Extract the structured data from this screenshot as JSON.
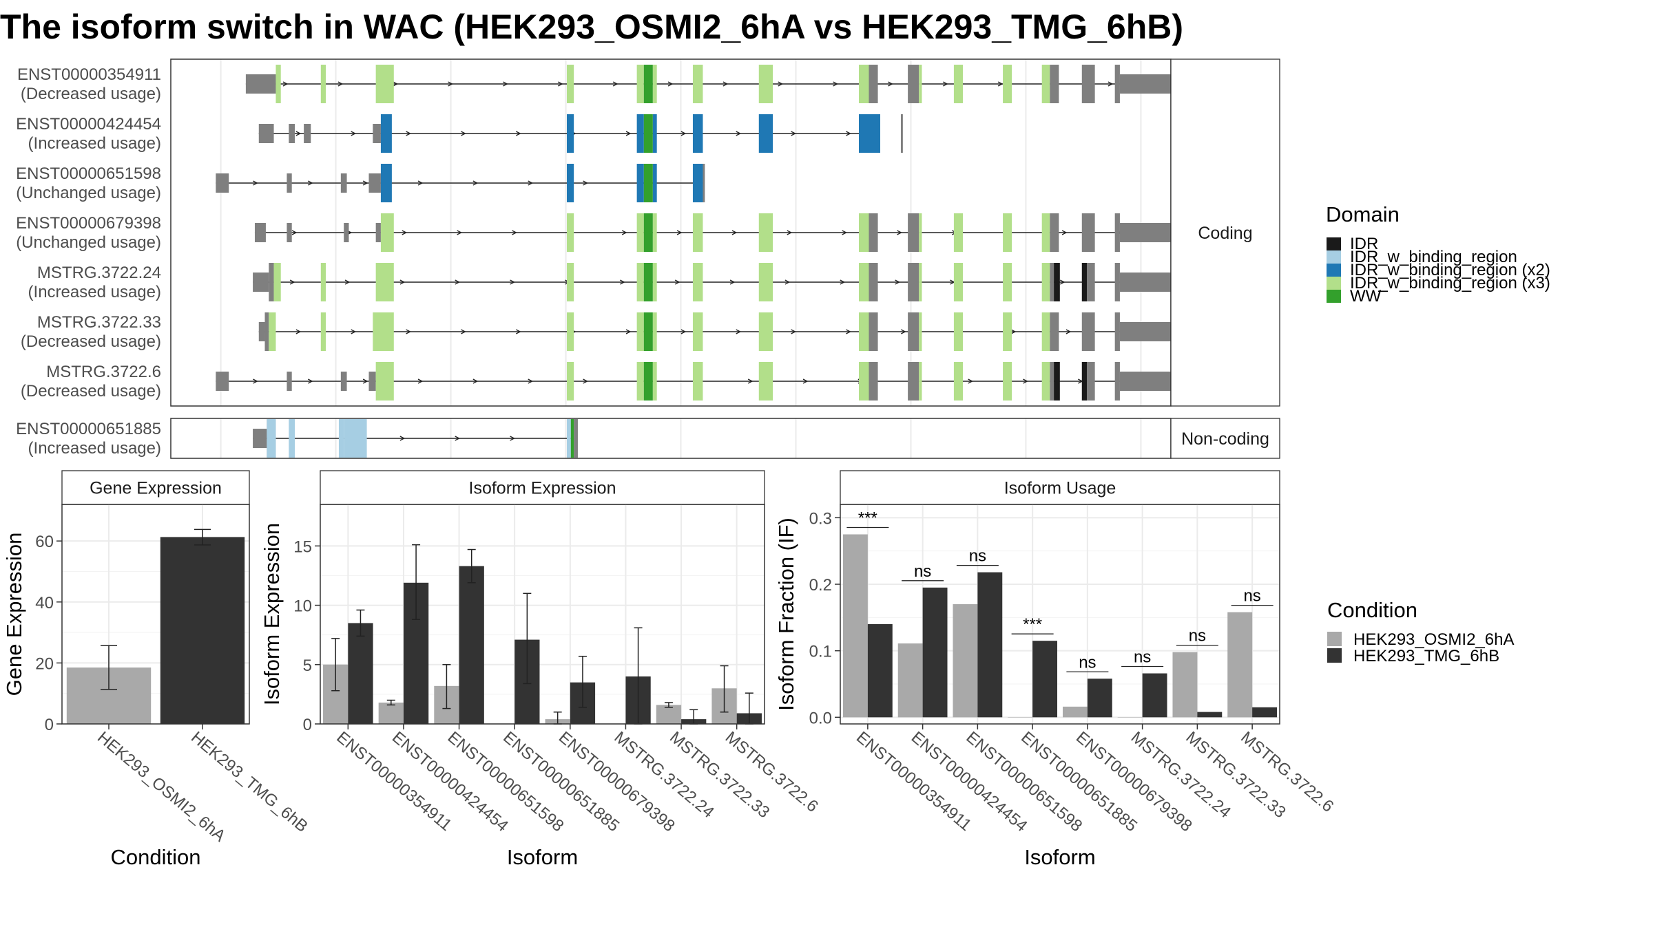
{
  "title": "The isoform switch in WAC (HEK293_OSMI2_6hA vs HEK293_TMG_6hB)",
  "colors": {
    "exon": "#7f7f7f",
    "IDR": "#1a1a1a",
    "IDR_w_binding_region": "#a6cee3",
    "IDR_w_binding_region (x2)": "#1f78b4",
    "IDR_w_binding_region (x3)": "#b2df8a",
    "WW": "#33a02c",
    "HEK293_OSMI2_6hA": "#a9a9a9",
    "HEK293_TMG_6hB": "#333333"
  },
  "structure": {
    "facets": [
      "Coding",
      "Non-coding"
    ],
    "coding_isoforms": [
      {
        "id": "ENST00000354911",
        "usage": "(Decreased usage)"
      },
      {
        "id": "ENST00000424454",
        "usage": "(Increased usage)"
      },
      {
        "id": "ENST00000651598",
        "usage": "(Unchanged usage)"
      },
      {
        "id": "ENST00000679398",
        "usage": "(Unchanged usage)"
      },
      {
        "id": "MSTRG.3722.24",
        "usage": "(Increased usage)"
      },
      {
        "id": "MSTRG.3722.33",
        "usage": "(Decreased usage)"
      },
      {
        "id": "MSTRG.3722.6",
        "usage": "(Decreased usage)"
      }
    ],
    "noncoding_isoforms": [
      {
        "id": "ENST00000651885",
        "usage": "(Increased usage)"
      }
    ],
    "legend_title": "Domain",
    "legend_items": [
      "IDR",
      "IDR_w_binding_region",
      "IDR_w_binding_region (x2)",
      "IDR_w_binding_region (x3)",
      "WW"
    ]
  },
  "chart_data": [
    {
      "type": "bar",
      "title": "Gene Expression",
      "xlabel": "Condition",
      "ylabel": "Gene Expression",
      "categories": [
        "HEK293_OSMI2_6hA",
        "HEK293_TMG_6hB"
      ],
      "values": [
        18.5,
        61.3
      ],
      "err_low": [
        11.3,
        58.7
      ],
      "err_high": [
        25.7,
        63.8
      ],
      "ylim": [
        0,
        72
      ],
      "yticks": [
        0,
        20,
        40,
        60
      ]
    },
    {
      "type": "bar",
      "title": "Isoform Expression",
      "xlabel": "Isoform",
      "ylabel": "Isoform Expression",
      "categories": [
        "ENST00000354911",
        "ENST00000424454",
        "ENST00000651598",
        "ENST00000651885",
        "ENST00000679398",
        "MSTRG.3722.24",
        "MSTRG.3722.33",
        "MSTRG.3722.6"
      ],
      "series": [
        {
          "name": "HEK293_OSMI2_6hA",
          "values": [
            5.0,
            1.8,
            3.2,
            0.0,
            0.4,
            0.0,
            1.6,
            3.0
          ],
          "err": [
            [
              2.8,
              7.2
            ],
            [
              1.6,
              2.0
            ],
            [
              1.3,
              5.0
            ],
            [
              0,
              0
            ],
            [
              0,
              1.0
            ],
            [
              0,
              0
            ],
            [
              1.4,
              1.8
            ],
            [
              1.0,
              4.9
            ]
          ]
        },
        {
          "name": "HEK293_TMG_6hB",
          "values": [
            8.5,
            11.9,
            13.3,
            7.1,
            3.5,
            4.0,
            0.4,
            0.9
          ],
          "err": [
            [
              7.4,
              9.6
            ],
            [
              8.8,
              15.1
            ],
            [
              11.9,
              14.7
            ],
            [
              3.4,
              11.0
            ],
            [
              1.4,
              5.7
            ],
            [
              0,
              8.1
            ],
            [
              0,
              1.2
            ],
            [
              0,
              2.6
            ]
          ]
        }
      ],
      "ylim": [
        0,
        18.5
      ],
      "yticks": [
        0,
        5,
        10,
        15
      ]
    },
    {
      "type": "bar",
      "title": "Isoform Usage",
      "xlabel": "Isoform",
      "ylabel": "Isoform Fraction (IF)",
      "categories": [
        "ENST00000354911",
        "ENST00000424454",
        "ENST00000651598",
        "ENST00000651885",
        "ENST00000679398",
        "MSTRG.3722.24",
        "MSTRG.3722.33",
        "MSTRG.3722.6"
      ],
      "series": [
        {
          "name": "HEK293_OSMI2_6hA",
          "values": [
            0.275,
            0.111,
            0.17,
            0.0,
            0.016,
            0.0,
            0.098,
            0.158
          ]
        },
        {
          "name": "HEK293_TMG_6hB",
          "values": [
            0.14,
            0.195,
            0.218,
            0.115,
            0.058,
            0.066,
            0.008,
            0.015
          ]
        }
      ],
      "significance": [
        "***",
        "ns",
        "ns",
        "***",
        "ns",
        "ns",
        "ns",
        "ns"
      ],
      "ylim": [
        -0.01,
        0.32
      ],
      "yticks": [
        0.0,
        0.1,
        0.2,
        0.3
      ],
      "ytick_labels": [
        "0.0",
        "0.1",
        "0.2",
        "0.3"
      ],
      "legend_title": "Condition",
      "legend_items": [
        "HEK293_OSMI2_6hA",
        "HEK293_TMG_6hB"
      ]
    }
  ]
}
